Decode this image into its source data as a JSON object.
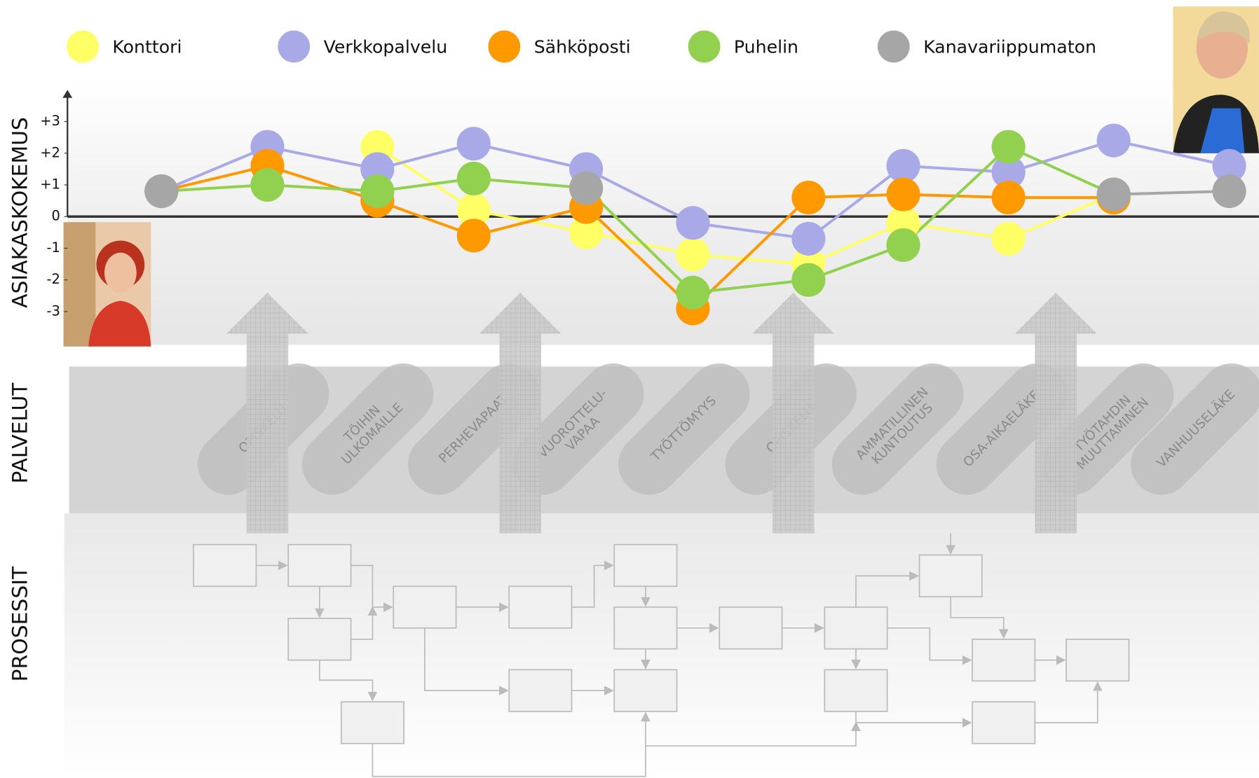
{
  "chart_data": {
    "type": "line",
    "y_label": "ASIAKASKOKEMUS",
    "categories": [
      null,
      null,
      null,
      null,
      null,
      null,
      null,
      null,
      null,
      null,
      null
    ],
    "series": [
      {
        "name": "Konttori",
        "color": "#ffff66",
        "values": [
          null,
          null,
          2.2,
          0.2,
          -0.5,
          -1.2,
          -1.5,
          -0.2,
          -0.7,
          0.7,
          null
        ]
      },
      {
        "name": "Verkkopalvelu",
        "color": "#a9a9e8",
        "values": [
          0.8,
          2.2,
          1.5,
          2.3,
          1.5,
          -0.2,
          -0.7,
          1.6,
          1.4,
          2.4,
          1.6
        ]
      },
      {
        "name": "Sähköposti",
        "color": "#ff9900",
        "values": [
          0.8,
          1.6,
          0.5,
          -0.6,
          0.3,
          -2.9,
          0.6,
          0.7,
          0.6,
          0.6,
          null
        ]
      },
      {
        "name": "Puhelin",
        "color": "#92d050",
        "values": [
          0.8,
          1.0,
          0.8,
          1.2,
          0.9,
          -2.4,
          -2.0,
          -0.9,
          2.2,
          0.7,
          null
        ]
      },
      {
        "name": "Kanavariippumaton",
        "color": "#a6a6a6",
        "values": [
          0.8,
          null,
          null,
          null,
          0.9,
          null,
          null,
          null,
          null,
          0.7,
          0.8
        ]
      }
    ],
    "ylim": [
      -4,
      4
    ],
    "yticks": [
      {
        "value": 3,
        "label": "+3"
      },
      {
        "value": 2,
        "label": "+2"
      },
      {
        "value": 1,
        "label": "+1"
      },
      0,
      -1,
      -2,
      -3
    ]
  },
  "palvelut": {
    "label": "PALVELUT",
    "services": [
      [
        "OPISKELU"
      ],
      [
        "TÖIHIN",
        "ULKOMAILLE"
      ],
      [
        "PERHEVAPAAT"
      ],
      [
        "VUOROTTELU-",
        "VAPAA"
      ],
      [
        "TYÖTTÖMYYS"
      ],
      [
        "OPISKELU"
      ],
      [
        "AMMATILLINEN",
        "KUNTOUTUS"
      ],
      [
        "OSA-AIKAELÄKE"
      ],
      [
        "TYÖTAHDIN",
        "MUUTTAMINEN"
      ],
      [
        "VANHUUSELÄKE"
      ]
    ]
  },
  "prosessit": {
    "label": "PROSESSIT"
  }
}
